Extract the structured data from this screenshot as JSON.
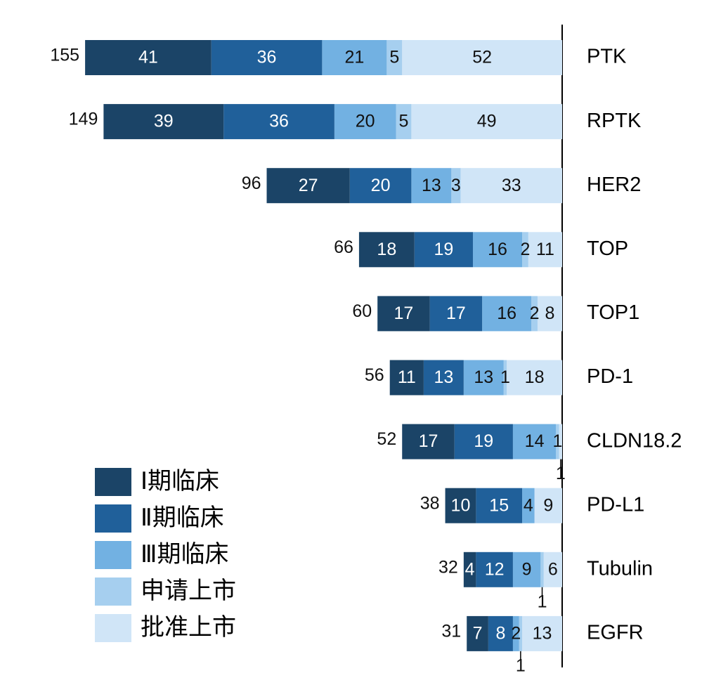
{
  "chart_data": {
    "type": "bar",
    "orientation": "horizontal",
    "stacked": true,
    "categories": [
      "PTK",
      "RPTK",
      "HER2",
      "TOP",
      "TOP1",
      "PD-1",
      "CLDN18.2",
      "PD-L1",
      "Tubulin",
      "EGFR"
    ],
    "totals": [
      155,
      149,
      96,
      66,
      60,
      56,
      52,
      38,
      32,
      31
    ],
    "series": [
      {
        "name": "Ⅰ期临床",
        "color": "#1b4467",
        "values": [
          41,
          39,
          27,
          18,
          17,
          11,
          17,
          10,
          4,
          7
        ]
      },
      {
        "name": "Ⅱ期临床",
        "color": "#20609a",
        "values": [
          36,
          36,
          20,
          19,
          17,
          13,
          19,
          15,
          12,
          8
        ]
      },
      {
        "name": "Ⅲ期临床",
        "color": "#72b1e2",
        "values": [
          21,
          20,
          13,
          16,
          16,
          13,
          14,
          4,
          9,
          2
        ]
      },
      {
        "name": "申请上市",
        "color": "#a6cfef",
        "values": [
          5,
          5,
          3,
          2,
          2,
          1,
          1,
          0,
          1,
          1
        ]
      },
      {
        "name": "批准上市",
        "color": "#d0e5f7",
        "values": [
          52,
          49,
          33,
          11,
          8,
          18,
          1,
          9,
          6,
          13
        ]
      }
    ],
    "legend": "lower left"
  }
}
